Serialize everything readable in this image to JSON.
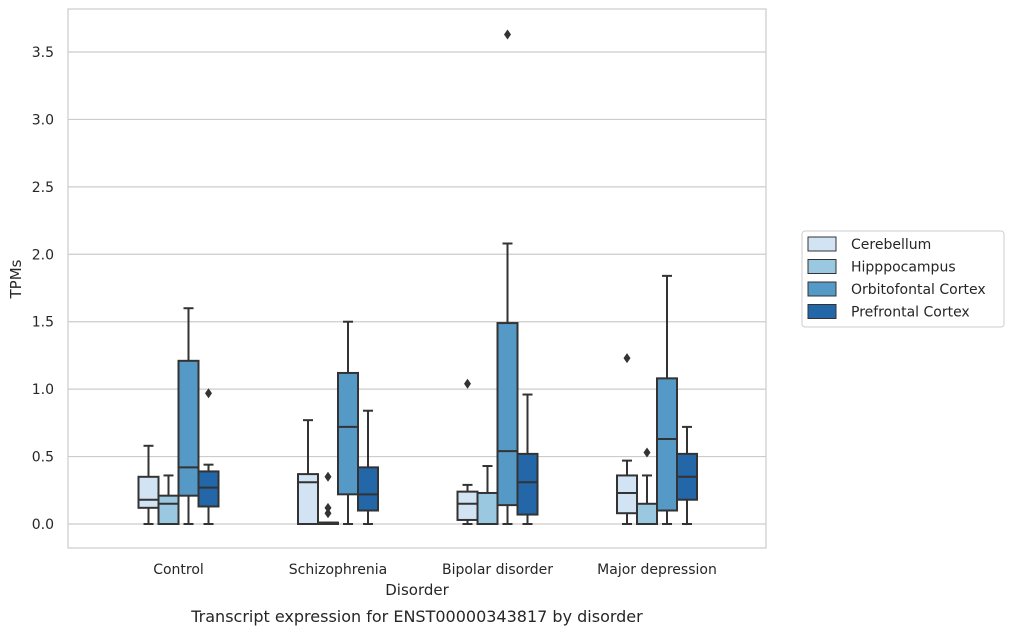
{
  "chart_data": {
    "type": "box",
    "xlabel": "Disorder",
    "ylabel": "TPMs",
    "caption": "Transcript expression for ENST00000343817 by disorder",
    "ylim": [
      -0.17,
      3.8
    ],
    "yticks": [
      "0.0",
      "0.5",
      "1.0",
      "1.5",
      "2.0",
      "2.5",
      "3.0",
      "3.5"
    ],
    "grid": "horizontal",
    "legend_position": "right",
    "categories": [
      "Control",
      "Schizophrenia",
      "Bipolar disorder",
      "Major depression"
    ],
    "series": [
      {
        "name": "Cerebellum",
        "color": "#d2e3f3",
        "boxes": [
          {
            "whislo": 0.0,
            "q1": 0.12,
            "med": 0.18,
            "q3": 0.35,
            "whishi": 0.58,
            "fliers": []
          },
          {
            "whislo": 0.0,
            "q1": 0.0,
            "med": 0.31,
            "q3": 0.37,
            "whishi": 0.77,
            "fliers": []
          },
          {
            "whislo": 0.0,
            "q1": 0.03,
            "med": 0.15,
            "q3": 0.24,
            "whishi": 0.29,
            "fliers": [
              1.04
            ]
          },
          {
            "whislo": 0.0,
            "q1": 0.08,
            "med": 0.23,
            "q3": 0.36,
            "whishi": 0.47,
            "fliers": [
              1.23
            ]
          }
        ]
      },
      {
        "name": "Hipppocampus",
        "color": "#9ac8e0",
        "boxes": [
          {
            "whislo": 0.0,
            "q1": 0.0,
            "med": 0.15,
            "q3": 0.21,
            "whishi": 0.36,
            "fliers": []
          },
          {
            "whislo": 0.0,
            "q1": 0.0,
            "med": 0.01,
            "q3": 0.01,
            "whishi": 0.01,
            "fliers": [
              0.08,
              0.12,
              0.35
            ]
          },
          {
            "whislo": 0.0,
            "q1": 0.0,
            "med": 0.0,
            "q3": 0.23,
            "whishi": 0.43,
            "fliers": []
          },
          {
            "whislo": 0.0,
            "q1": 0.0,
            "med": 0.0,
            "q3": 0.15,
            "whishi": 0.36,
            "fliers": [
              0.53
            ]
          }
        ]
      },
      {
        "name": "Orbitofontal Cortex",
        "color": "#5599c6",
        "boxes": [
          {
            "whislo": 0.0,
            "q1": 0.21,
            "med": 0.42,
            "q3": 1.21,
            "whishi": 1.6,
            "fliers": []
          },
          {
            "whislo": 0.0,
            "q1": 0.22,
            "med": 0.72,
            "q3": 1.12,
            "whishi": 1.5,
            "fliers": []
          },
          {
            "whislo": 0.0,
            "q1": 0.14,
            "med": 0.54,
            "q3": 1.49,
            "whishi": 2.08,
            "fliers": [
              3.63
            ]
          },
          {
            "whislo": 0.0,
            "q1": 0.1,
            "med": 0.63,
            "q3": 1.08,
            "whishi": 1.84,
            "fliers": []
          }
        ]
      },
      {
        "name": "Prefrontal Cortex",
        "color": "#2367a9",
        "boxes": [
          {
            "whislo": 0.0,
            "q1": 0.13,
            "med": 0.27,
            "q3": 0.39,
            "whishi": 0.44,
            "fliers": [
              0.97
            ]
          },
          {
            "whislo": 0.0,
            "q1": 0.1,
            "med": 0.22,
            "q3": 0.42,
            "whishi": 0.84,
            "fliers": []
          },
          {
            "whislo": 0.0,
            "q1": 0.07,
            "med": 0.31,
            "q3": 0.52,
            "whishi": 0.96,
            "fliers": []
          },
          {
            "whislo": 0.0,
            "q1": 0.18,
            "med": 0.35,
            "q3": 0.52,
            "whishi": 0.72,
            "fliers": []
          }
        ]
      }
    ]
  }
}
